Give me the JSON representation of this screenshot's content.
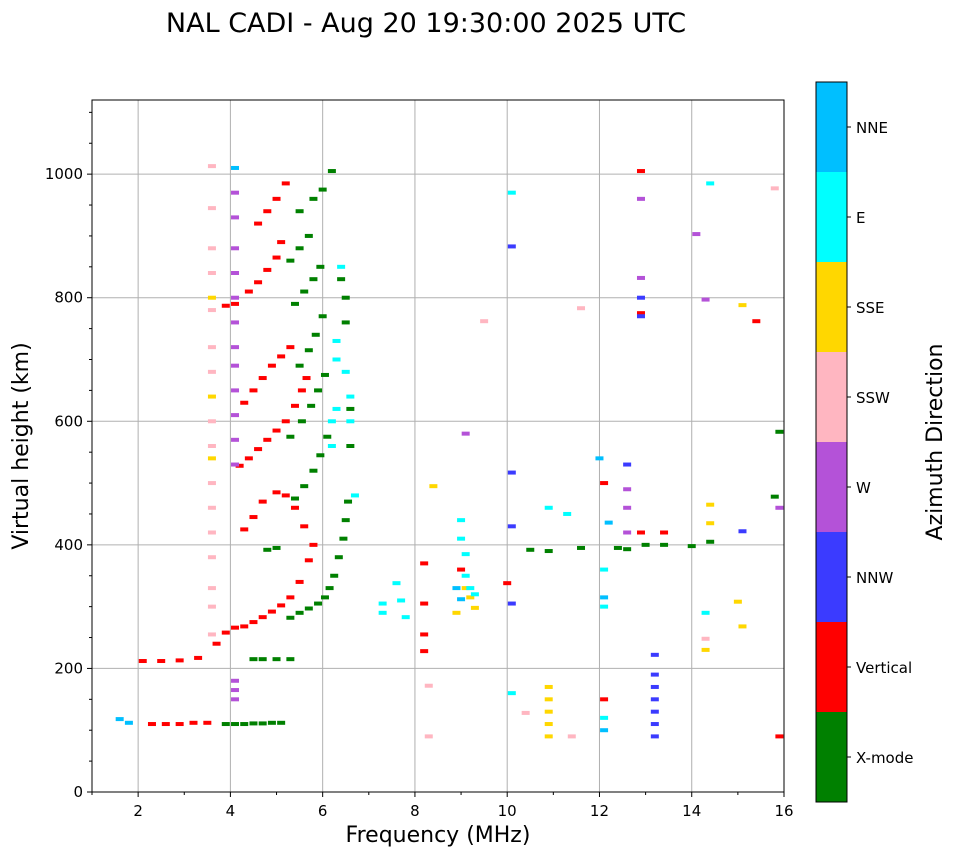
{
  "chart_data": {
    "type": "scatter",
    "title": "NAL CADI - Aug 20 19:30:00 2025 UTC",
    "xlabel": "Frequency (MHz)",
    "ylabel": "Virtual height (km)",
    "xlim": [
      1,
      16
    ],
    "ylim": [
      0,
      1120
    ],
    "xticks": [
      2,
      4,
      6,
      8,
      10,
      12,
      14,
      16
    ],
    "yticks": [
      0,
      200,
      400,
      600,
      800,
      1000
    ],
    "grid": true,
    "colorbar": {
      "label": "Azimuth Direction",
      "categories": [
        {
          "name": "X-mode",
          "color": "#008000"
        },
        {
          "name": "Vertical",
          "color": "#ff0000"
        },
        {
          "name": "NNW",
          "color": "#3b3bff"
        },
        {
          "name": "W",
          "color": "#b452d8"
        },
        {
          "name": "SSW",
          "color": "#ffb6c1"
        },
        {
          "name": "SSE",
          "color": "#ffd700"
        },
        {
          "name": "E",
          "color": "#00ffff"
        },
        {
          "name": "NNE",
          "color": "#00bfff"
        }
      ]
    },
    "series": [
      {
        "name": "X-mode",
        "points": [
          [
            3.9,
            110
          ],
          [
            4.1,
            110
          ],
          [
            4.3,
            110
          ],
          [
            4.5,
            111
          ],
          [
            4.7,
            111
          ],
          [
            4.9,
            112
          ],
          [
            5.1,
            112
          ],
          [
            4.5,
            215
          ],
          [
            4.7,
            215
          ],
          [
            5.0,
            215
          ],
          [
            5.3,
            215
          ],
          [
            4.8,
            392
          ],
          [
            5.0,
            395
          ],
          [
            5.3,
            282
          ],
          [
            5.5,
            290
          ],
          [
            5.7,
            297
          ],
          [
            5.9,
            305
          ],
          [
            6.05,
            315
          ],
          [
            6.15,
            330
          ],
          [
            6.25,
            350
          ],
          [
            6.35,
            380
          ],
          [
            6.45,
            410
          ],
          [
            6.5,
            440
          ],
          [
            6.55,
            470
          ],
          [
            5.4,
            475
          ],
          [
            5.6,
            495
          ],
          [
            5.8,
            520
          ],
          [
            5.95,
            545
          ],
          [
            6.1,
            575
          ],
          [
            5.3,
            575
          ],
          [
            5.55,
            600
          ],
          [
            5.75,
            625
          ],
          [
            5.9,
            650
          ],
          [
            6.05,
            675
          ],
          [
            5.5,
            690
          ],
          [
            5.7,
            715
          ],
          [
            5.85,
            740
          ],
          [
            6.0,
            770
          ],
          [
            5.4,
            790
          ],
          [
            5.6,
            810
          ],
          [
            5.8,
            830
          ],
          [
            5.95,
            850
          ],
          [
            5.3,
            860
          ],
          [
            5.5,
            880
          ],
          [
            5.7,
            900
          ],
          [
            5.5,
            940
          ],
          [
            5.8,
            960
          ],
          [
            6.0,
            975
          ],
          [
            6.2,
            1005
          ],
          [
            6.4,
            830
          ],
          [
            6.5,
            800
          ],
          [
            6.5,
            760
          ],
          [
            6.6,
            620
          ],
          [
            6.6,
            560
          ],
          [
            11.6,
            395
          ],
          [
            12.4,
            395
          ],
          [
            12.6,
            393
          ],
          [
            13.0,
            400
          ],
          [
            13.4,
            400
          ],
          [
            14.0,
            398
          ],
          [
            14.4,
            405
          ],
          [
            10.5,
            392
          ],
          [
            10.9,
            390
          ],
          [
            15.8,
            478
          ],
          [
            15.9,
            583
          ]
        ]
      },
      {
        "name": "Vertical",
        "points": [
          [
            2.3,
            110
          ],
          [
            2.6,
            110
          ],
          [
            2.9,
            110
          ],
          [
            3.2,
            112
          ],
          [
            3.5,
            112
          ],
          [
            2.1,
            212
          ],
          [
            2.5,
            212
          ],
          [
            2.9,
            213
          ],
          [
            3.3,
            217
          ],
          [
            3.7,
            240
          ],
          [
            3.9,
            258
          ],
          [
            4.1,
            266
          ],
          [
            4.3,
            268
          ],
          [
            4.5,
            275
          ],
          [
            4.7,
            283
          ],
          [
            4.9,
            292
          ],
          [
            5.1,
            302
          ],
          [
            5.3,
            315
          ],
          [
            5.5,
            340
          ],
          [
            5.7,
            375
          ],
          [
            5.8,
            400
          ],
          [
            4.2,
            528
          ],
          [
            4.4,
            540
          ],
          [
            4.6,
            555
          ],
          [
            4.8,
            570
          ],
          [
            5.0,
            585
          ],
          [
            5.2,
            600
          ],
          [
            5.4,
            625
          ],
          [
            5.55,
            650
          ],
          [
            5.65,
            670
          ],
          [
            4.3,
            425
          ],
          [
            4.5,
            445
          ],
          [
            4.7,
            470
          ],
          [
            5.0,
            485
          ],
          [
            5.2,
            480
          ],
          [
            5.4,
            460
          ],
          [
            5.6,
            430
          ],
          [
            4.3,
            630
          ],
          [
            4.5,
            650
          ],
          [
            4.7,
            670
          ],
          [
            4.9,
            690
          ],
          [
            5.1,
            705
          ],
          [
            5.3,
            720
          ],
          [
            3.9,
            787
          ],
          [
            4.1,
            790
          ],
          [
            4.4,
            810
          ],
          [
            4.6,
            825
          ],
          [
            4.8,
            845
          ],
          [
            5.0,
            865
          ],
          [
            5.1,
            890
          ],
          [
            4.6,
            920
          ],
          [
            4.8,
            940
          ],
          [
            5.0,
            960
          ],
          [
            5.2,
            985
          ],
          [
            8.2,
            370
          ],
          [
            8.2,
            305
          ],
          [
            8.2,
            255
          ],
          [
            8.2,
            228
          ],
          [
            9.0,
            360
          ],
          [
            10.0,
            338
          ],
          [
            12.1,
            500
          ],
          [
            12.1,
            150
          ],
          [
            12.9,
            420
          ],
          [
            13.4,
            420
          ],
          [
            12.9,
            1005
          ],
          [
            12.9,
            775
          ],
          [
            15.4,
            762
          ],
          [
            15.9,
            90
          ]
        ]
      },
      {
        "name": "NNW",
        "points": [
          [
            13.2,
            190
          ],
          [
            13.2,
            170
          ],
          [
            13.2,
            150
          ],
          [
            13.2,
            130
          ],
          [
            13.2,
            110
          ],
          [
            13.2,
            90
          ],
          [
            13.2,
            222
          ],
          [
            10.1,
            883
          ],
          [
            10.1,
            517
          ],
          [
            10.1,
            430
          ],
          [
            10.1,
            305
          ],
          [
            12.9,
            770
          ],
          [
            12.9,
            800
          ],
          [
            15.1,
            422
          ],
          [
            12.6,
            530
          ]
        ]
      },
      {
        "name": "W",
        "points": [
          [
            4.1,
            970
          ],
          [
            4.1,
            930
          ],
          [
            4.1,
            880
          ],
          [
            4.1,
            840
          ],
          [
            4.1,
            800
          ],
          [
            4.1,
            760
          ],
          [
            4.1,
            720
          ],
          [
            4.1,
            690
          ],
          [
            4.1,
            650
          ],
          [
            4.1,
            610
          ],
          [
            4.1,
            570
          ],
          [
            4.1,
            530
          ],
          [
            4.1,
            180
          ],
          [
            4.1,
            165
          ],
          [
            4.1,
            150
          ],
          [
            12.6,
            460
          ],
          [
            12.6,
            420
          ],
          [
            12.6,
            490
          ],
          [
            12.9,
            960
          ],
          [
            12.9,
            832
          ],
          [
            9.1,
            580
          ],
          [
            14.1,
            903
          ],
          [
            14.3,
            797
          ],
          [
            15.9,
            460
          ]
        ]
      },
      {
        "name": "SSW",
        "points": [
          [
            3.6,
            1013
          ],
          [
            3.6,
            945
          ],
          [
            3.6,
            880
          ],
          [
            3.6,
            840
          ],
          [
            3.6,
            780
          ],
          [
            3.6,
            720
          ],
          [
            3.6,
            680
          ],
          [
            3.6,
            600
          ],
          [
            3.6,
            560
          ],
          [
            3.6,
            500
          ],
          [
            3.6,
            460
          ],
          [
            3.6,
            420
          ],
          [
            3.6,
            380
          ],
          [
            3.6,
            330
          ],
          [
            3.6,
            300
          ],
          [
            3.6,
            255
          ],
          [
            8.3,
            172
          ],
          [
            8.3,
            90
          ],
          [
            11.4,
            90
          ],
          [
            10.4,
            128
          ],
          [
            11.6,
            783
          ],
          [
            9.5,
            762
          ],
          [
            14.3,
            248
          ],
          [
            15.8,
            977
          ]
        ]
      },
      {
        "name": "SSE",
        "points": [
          [
            10.9,
            170
          ],
          [
            10.9,
            150
          ],
          [
            10.9,
            130
          ],
          [
            10.9,
            110
          ],
          [
            10.9,
            90
          ],
          [
            9.1,
            330
          ],
          [
            9.2,
            315
          ],
          [
            9.3,
            298
          ],
          [
            8.9,
            290
          ],
          [
            15.1,
            788
          ],
          [
            15.0,
            308
          ],
          [
            15.1,
            268
          ],
          [
            14.3,
            230
          ],
          [
            14.4,
            465
          ],
          [
            14.4,
            435
          ],
          [
            8.4,
            495
          ],
          [
            3.6,
            800
          ],
          [
            3.6,
            640
          ],
          [
            3.6,
            540
          ]
        ]
      },
      {
        "name": "E",
        "points": [
          [
            6.4,
            850
          ],
          [
            6.3,
            730
          ],
          [
            6.3,
            700
          ],
          [
            6.3,
            620
          ],
          [
            6.2,
            600
          ],
          [
            6.2,
            560
          ],
          [
            6.5,
            680
          ],
          [
            6.6,
            640
          ],
          [
            6.6,
            600
          ],
          [
            6.7,
            480
          ],
          [
            7.3,
            305
          ],
          [
            7.3,
            290
          ],
          [
            7.6,
            338
          ],
          [
            7.7,
            310
          ],
          [
            7.8,
            283
          ],
          [
            9.0,
            440
          ],
          [
            9.0,
            410
          ],
          [
            9.1,
            385
          ],
          [
            9.1,
            350
          ],
          [
            9.2,
            330
          ],
          [
            9.3,
            320
          ],
          [
            12.1,
            360
          ],
          [
            12.1,
            300
          ],
          [
            12.1,
            120
          ],
          [
            14.4,
            985
          ],
          [
            14.3,
            290
          ],
          [
            10.1,
            970
          ],
          [
            10.1,
            160
          ],
          [
            10.9,
            460
          ],
          [
            11.3,
            450
          ]
        ]
      },
      {
        "name": "NNE",
        "points": [
          [
            4.1,
            1010
          ],
          [
            1.6,
            118
          ],
          [
            1.8,
            112
          ],
          [
            12.0,
            540
          ],
          [
            12.1,
            315
          ],
          [
            12.1,
            100
          ],
          [
            12.2,
            436
          ],
          [
            8.9,
            330
          ],
          [
            9.0,
            312
          ]
        ]
      }
    ]
  }
}
